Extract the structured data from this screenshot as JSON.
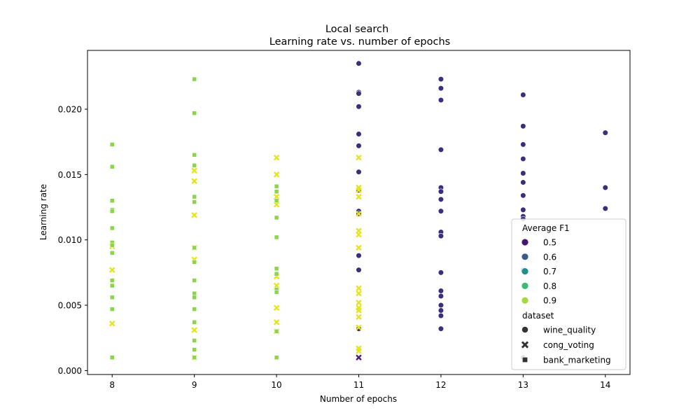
{
  "chart_data": {
    "type": "scatter",
    "title": "Local search",
    "subtitle": "Learning rate vs. number of epochs",
    "xlabel": "Number of epochs",
    "ylabel": "Learning rate",
    "xlim": [
      7.7,
      14.3
    ],
    "ylim": [
      -0.0003,
      0.0245
    ],
    "x_ticks": [
      8,
      9,
      10,
      11,
      12,
      13,
      14
    ],
    "x_tick_labels": [
      "8",
      "9",
      "10",
      "11",
      "12",
      "13",
      "14"
    ],
    "y_ticks": [
      0.0,
      0.005,
      0.01,
      0.015,
      0.02
    ],
    "y_tick_labels": [
      "0.000",
      "0.005",
      "0.010",
      "0.015",
      "0.020"
    ],
    "grid": false,
    "colors": {
      "f1_0.5": "#3b2e7c",
      "f1_0.6": "#3c5f8c",
      "f1_0.7": "#20958b",
      "f1_0.8": "#3dbb74",
      "f1_0.9": "#8ad54a",
      "f1_0.95": "#e6e41f",
      "f1_0.45": "#4a1a78"
    },
    "legend": {
      "placement": "lower-right",
      "hue_title": "Average F1",
      "hue_entries": [
        {
          "label": "0.5",
          "color": "#46176e"
        },
        {
          "label": "0.6",
          "color": "#3b5b8b"
        },
        {
          "label": "0.7",
          "color": "#21908d"
        },
        {
          "label": "0.8",
          "color": "#3bbb75"
        },
        {
          "label": "0.9",
          "color": "#a5db36"
        }
      ],
      "style_title": "dataset",
      "style_entries": [
        {
          "label": "wine_quality",
          "marker": "circle"
        },
        {
          "label": "cong_voting",
          "marker": "x"
        },
        {
          "label": "bank_marketing",
          "marker": "square"
        }
      ]
    },
    "series": [
      {
        "dataset": "wine_quality",
        "marker": "circle",
        "color_key": "f1_0.5",
        "points": [
          [
            11,
            0.0235
          ],
          [
            11,
            0.0213
          ],
          [
            11,
            0.0212
          ],
          [
            11,
            0.0202
          ],
          [
            11,
            0.0181
          ],
          [
            11,
            0.0172
          ],
          [
            11,
            0.0152
          ],
          [
            11,
            0.0138
          ],
          [
            11,
            0.0122
          ],
          [
            11,
            0.012
          ],
          [
            11,
            0.0088
          ],
          [
            11,
            0.0077
          ],
          [
            11,
            0.0032
          ],
          [
            12,
            0.0223
          ],
          [
            12,
            0.0216
          ],
          [
            12,
            0.0207
          ],
          [
            12,
            0.0169
          ],
          [
            12,
            0.014
          ],
          [
            12,
            0.0137
          ],
          [
            12,
            0.0131
          ],
          [
            12,
            0.0122
          ],
          [
            12,
            0.0106
          ],
          [
            12,
            0.0103
          ],
          [
            12,
            0.0075
          ],
          [
            12,
            0.0061
          ],
          [
            12,
            0.0057
          ],
          [
            12,
            0.005
          ],
          [
            12,
            0.0046
          ],
          [
            12,
            0.0042
          ],
          [
            12,
            0.0032
          ],
          [
            13,
            0.0211
          ],
          [
            13,
            0.0187
          ],
          [
            13,
            0.0173
          ],
          [
            13,
            0.0162
          ],
          [
            13,
            0.0151
          ],
          [
            13,
            0.0144
          ],
          [
            13,
            0.0134
          ],
          [
            13,
            0.0123
          ],
          [
            13,
            0.0118
          ],
          [
            13,
            0.0116
          ],
          [
            13,
            0.0077
          ],
          [
            13,
            0.001
          ],
          [
            14,
            0.0182
          ],
          [
            14,
            0.014
          ],
          [
            14,
            0.0124
          ]
        ]
      },
      {
        "dataset": "cong_voting",
        "marker": "x",
        "color_key": "f1_0.95",
        "points": [
          [
            8,
            0.0095
          ],
          [
            8,
            0.0077
          ],
          [
            8,
            0.0036
          ],
          [
            9,
            0.0153
          ],
          [
            9,
            0.0145
          ],
          [
            9,
            0.0119
          ],
          [
            9,
            0.0094
          ],
          [
            9,
            0.0085
          ],
          [
            9,
            0.0031
          ],
          [
            9,
            0.001
          ],
          [
            10,
            0.0163
          ],
          [
            10,
            0.015
          ],
          [
            10,
            0.0133
          ],
          [
            10,
            0.013
          ],
          [
            10,
            0.0127
          ],
          [
            10,
            0.0072
          ],
          [
            10,
            0.0065
          ],
          [
            10,
            0.0048
          ],
          [
            10,
            0.0037
          ],
          [
            10,
            0.003
          ],
          [
            11,
            0.0163
          ],
          [
            11,
            0.014
          ],
          [
            11,
            0.0138
          ],
          [
            11,
            0.0133
          ],
          [
            11,
            0.012
          ],
          [
            11,
            0.0107
          ],
          [
            11,
            0.0104
          ],
          [
            11,
            0.0094
          ],
          [
            11,
            0.0063
          ],
          [
            11,
            0.0059
          ],
          [
            11,
            0.0052
          ],
          [
            11,
            0.0048
          ],
          [
            11,
            0.0046
          ],
          [
            11,
            0.0041
          ],
          [
            11,
            0.0033
          ],
          [
            11,
            0.0017
          ],
          [
            11,
            0.0015
          ]
        ]
      },
      {
        "dataset": "cong_voting",
        "marker": "x",
        "color_key": "f1_0.45",
        "points": [
          [
            11,
            0.001
          ]
        ]
      },
      {
        "dataset": "bank_marketing",
        "marker": "square",
        "color_key": "f1_0.9",
        "points": [
          [
            8,
            0.0173
          ],
          [
            8,
            0.0156
          ],
          [
            8,
            0.013
          ],
          [
            8,
            0.0123
          ],
          [
            8,
            0.0122
          ],
          [
            8,
            0.0109
          ],
          [
            8,
            0.0098
          ],
          [
            8,
            0.0096
          ],
          [
            8,
            0.009
          ],
          [
            8,
            0.0069
          ],
          [
            8,
            0.0065
          ],
          [
            8,
            0.0056
          ],
          [
            8,
            0.0047
          ],
          [
            8,
            0.001
          ],
          [
            9,
            0.0223
          ],
          [
            9,
            0.0197
          ],
          [
            9,
            0.0165
          ],
          [
            9,
            0.0157
          ],
          [
            9,
            0.0133
          ],
          [
            9,
            0.0129
          ],
          [
            9,
            0.0094
          ],
          [
            9,
            0.0083
          ],
          [
            9,
            0.0069
          ],
          [
            9,
            0.0059
          ],
          [
            9,
            0.0056
          ],
          [
            9,
            0.0047
          ],
          [
            9,
            0.0037
          ],
          [
            9,
            0.0023
          ],
          [
            9,
            0.0016
          ],
          [
            9,
            0.001
          ],
          [
            10,
            0.0141
          ],
          [
            10,
            0.0137
          ],
          [
            10,
            0.013
          ],
          [
            10,
            0.0117
          ],
          [
            10,
            0.0102
          ],
          [
            10,
            0.0078
          ],
          [
            10,
            0.0074
          ],
          [
            10,
            0.0062
          ],
          [
            10,
            0.006
          ],
          [
            10,
            0.003
          ],
          [
            10,
            0.001
          ]
        ]
      }
    ]
  }
}
